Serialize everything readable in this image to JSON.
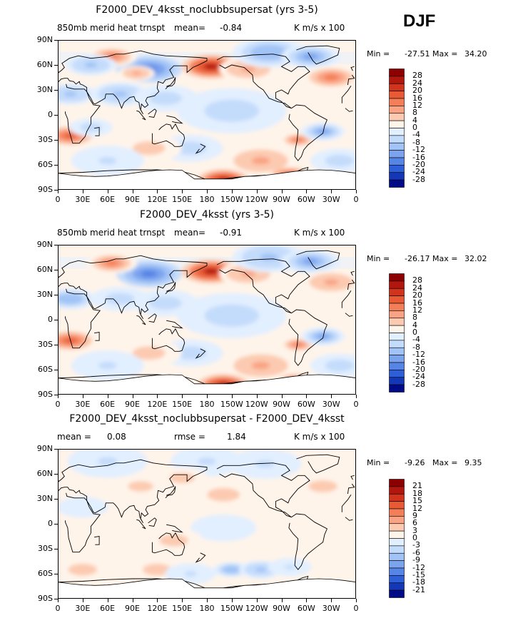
{
  "season": "DJF",
  "colors": {
    "ocean_neutral": "#ffffff",
    "coast": "#000000",
    "antarctica_fill": "#ffffff"
  },
  "panels": [
    {
      "title": "F2000_DEV_4ksst_noclubbsupersat (yrs 3-5)",
      "left_label": "850mb merid heat trnspt",
      "stat_label": "mean=",
      "stat_value": "-0.84",
      "units": "K m/s x 100",
      "min_label": "Min =",
      "min_value": "-27.51",
      "max_label": "Max =",
      "max_value": "34.20"
    },
    {
      "title": "F2000_DEV_4ksst (yrs 3-5)",
      "left_label": "850mb merid heat trnspt",
      "stat_label": "mean=",
      "stat_value": "-0.91",
      "units": "K m/s x 100",
      "min_label": "Min =",
      "min_value": "-26.17",
      "max_label": "Max =",
      "max_value": "32.02"
    },
    {
      "title": "F2000_DEV_4ksst_noclubbsupersat - F2000_DEV_4ksst",
      "left_label": "mean =",
      "left_value": "0.08",
      "stat_label": "rmse =",
      "stat_value": "1.84",
      "units": "K m/s x 100",
      "min_label": "Min =",
      "min_value": "-9.26",
      "max_label": "Max =",
      "max_value": "9.35"
    }
  ],
  "colorbars": [
    {
      "labels": [
        "28",
        "24",
        "20",
        "16",
        "12",
        "8",
        "4",
        "0",
        "-4",
        "-8",
        "-12",
        "-16",
        "-20",
        "-24",
        "-28"
      ],
      "colors": [
        "#8e0000",
        "#b2170d",
        "#d1341c",
        "#e75a34",
        "#f47e57",
        "#f9a384",
        "#fccab0",
        "#fff4ea",
        "#e2efff",
        "#c4dcfb",
        "#a1c3f6",
        "#7ca3ee",
        "#5585e5",
        "#2f5fd8",
        "#1437b8",
        "#000b87"
      ]
    },
    {
      "labels": [
        "28",
        "24",
        "20",
        "16",
        "12",
        "8",
        "4",
        "0",
        "-4",
        "-8",
        "-12",
        "-16",
        "-20",
        "-24",
        "-28"
      ],
      "colors": [
        "#8e0000",
        "#b2170d",
        "#d1341c",
        "#e75a34",
        "#f47e57",
        "#f9a384",
        "#fccab0",
        "#fff4ea",
        "#e2efff",
        "#c4dcfb",
        "#a1c3f6",
        "#7ca3ee",
        "#5585e5",
        "#2f5fd8",
        "#1437b8",
        "#000b87"
      ]
    },
    {
      "labels": [
        "21",
        "18",
        "15",
        "12",
        "9",
        "6",
        "3",
        "0",
        "-3",
        "-6",
        "-9",
        "-12",
        "-15",
        "-18",
        "-21"
      ],
      "colors": [
        "#8e0000",
        "#b2170d",
        "#d1341c",
        "#e75a34",
        "#f47e57",
        "#f9a384",
        "#fccab0",
        "#fff4ea",
        "#e2efff",
        "#c4dcfb",
        "#a1c3f6",
        "#7ca3ee",
        "#5585e5",
        "#2f5fd8",
        "#1437b8",
        "#000b87"
      ]
    }
  ],
  "axes": {
    "lat_ticks": [
      "90N",
      "60N",
      "30N",
      "0",
      "30S",
      "60S",
      "90S"
    ],
    "lon_ticks": [
      "0",
      "30E",
      "60E",
      "90E",
      "120E",
      "150E",
      "180",
      "150W",
      "120W",
      "90W",
      "60W",
      "30W",
      "0"
    ]
  },
  "chart_data": [
    {
      "type": "heatmap",
      "title": "F2000_DEV_4ksst_noclubbsupersat (yrs 3-5)",
      "variable": "850mb merid heat trnspt",
      "units": "K m/s x 100",
      "mean": -0.84,
      "min": -27.51,
      "max": 34.2,
      "levels": [
        -28,
        -24,
        -20,
        -16,
        -12,
        -8,
        -4,
        0,
        4,
        8,
        12,
        16,
        20,
        24,
        28
      ],
      "xlim": [
        0,
        360
      ],
      "ylim": [
        -90,
        90
      ],
      "blobs": [
        {
          "lon": 110,
          "lat": 55,
          "value": -20,
          "r": 18
        },
        {
          "lon": 65,
          "lat": 70,
          "value": 14,
          "r": 14
        },
        {
          "lon": 95,
          "lat": 50,
          "value": 10,
          "r": 10
        },
        {
          "lon": 185,
          "lat": 58,
          "value": 24,
          "r": 16
        },
        {
          "lon": 230,
          "lat": 55,
          "value": 10,
          "r": 16
        },
        {
          "lon": 255,
          "lat": 75,
          "value": -12,
          "r": 20
        },
        {
          "lon": 305,
          "lat": 70,
          "value": -16,
          "r": 16
        },
        {
          "lon": 330,
          "lat": 45,
          "value": 14,
          "r": 16
        },
        {
          "lon": 15,
          "lat": 25,
          "value": -10,
          "r": 14
        },
        {
          "lon": 40,
          "lat": 60,
          "value": -10,
          "r": 14
        },
        {
          "lon": 75,
          "lat": 25,
          "value": -10,
          "r": 16
        },
        {
          "lon": 130,
          "lat": 20,
          "value": -8,
          "r": 18
        },
        {
          "lon": 15,
          "lat": -25,
          "value": 16,
          "r": 12
        },
        {
          "lon": 40,
          "lat": -15,
          "value": -8,
          "r": 12
        },
        {
          "lon": 290,
          "lat": -30,
          "value": 14,
          "r": 10
        },
        {
          "lon": 320,
          "lat": -20,
          "value": -16,
          "r": 12
        },
        {
          "lon": 210,
          "lat": 5,
          "value": -6,
          "r": 30
        },
        {
          "lon": 160,
          "lat": -40,
          "value": -6,
          "r": 18
        },
        {
          "lon": 110,
          "lat": -40,
          "value": 6,
          "r": 18
        },
        {
          "lon": 245,
          "lat": -55,
          "value": 8,
          "r": 20
        },
        {
          "lon": 200,
          "lat": -78,
          "value": 24,
          "r": 14
        },
        {
          "lon": 280,
          "lat": -72,
          "value": 16,
          "r": 10
        },
        {
          "lon": 60,
          "lat": -55,
          "value": -5,
          "r": 20
        },
        {
          "lon": 340,
          "lat": -55,
          "value": -6,
          "r": 16
        }
      ]
    },
    {
      "type": "heatmap",
      "title": "F2000_DEV_4ksst (yrs 3-5)",
      "variable": "850mb merid heat trnspt",
      "units": "K m/s x 100",
      "mean": -0.91,
      "min": -26.17,
      "max": 32.02,
      "levels": [
        -28,
        -24,
        -20,
        -16,
        -12,
        -8,
        -4,
        0,
        4,
        8,
        12,
        16,
        20,
        24,
        28
      ],
      "xlim": [
        0,
        360
      ],
      "ylim": [
        -90,
        90
      ],
      "blobs": [
        {
          "lon": 110,
          "lat": 55,
          "value": -20,
          "r": 18
        },
        {
          "lon": 65,
          "lat": 68,
          "value": 12,
          "r": 14
        },
        {
          "lon": 185,
          "lat": 58,
          "value": 26,
          "r": 16
        },
        {
          "lon": 230,
          "lat": 55,
          "value": 8,
          "r": 16
        },
        {
          "lon": 255,
          "lat": 75,
          "value": -10,
          "r": 20
        },
        {
          "lon": 305,
          "lat": 70,
          "value": -14,
          "r": 16
        },
        {
          "lon": 330,
          "lat": 45,
          "value": 10,
          "r": 16
        },
        {
          "lon": 15,
          "lat": 25,
          "value": -12,
          "r": 14
        },
        {
          "lon": 75,
          "lat": 25,
          "value": -8,
          "r": 16
        },
        {
          "lon": 130,
          "lat": 20,
          "value": -8,
          "r": 18
        },
        {
          "lon": 15,
          "lat": -25,
          "value": 16,
          "r": 12
        },
        {
          "lon": 290,
          "lat": -30,
          "value": 14,
          "r": 10
        },
        {
          "lon": 320,
          "lat": -20,
          "value": -16,
          "r": 12
        },
        {
          "lon": 210,
          "lat": 5,
          "value": -6,
          "r": 30
        },
        {
          "lon": 160,
          "lat": -40,
          "value": -6,
          "r": 18
        },
        {
          "lon": 110,
          "lat": -40,
          "value": 6,
          "r": 18
        },
        {
          "lon": 245,
          "lat": -55,
          "value": 8,
          "r": 20
        },
        {
          "lon": 200,
          "lat": -78,
          "value": 24,
          "r": 14
        },
        {
          "lon": 285,
          "lat": -72,
          "value": 14,
          "r": 10
        },
        {
          "lon": 60,
          "lat": -55,
          "value": -5,
          "r": 20
        },
        {
          "lon": 340,
          "lat": -55,
          "value": -6,
          "r": 16
        }
      ]
    },
    {
      "type": "heatmap",
      "title": "F2000_DEV_4ksst_noclubbsupersat - F2000_DEV_4ksst",
      "units": "K m/s x 100",
      "mean": 0.08,
      "rmse": 1.84,
      "min": -9.26,
      "max": 9.35,
      "levels": [
        -21,
        -18,
        -15,
        -12,
        -9,
        -6,
        -3,
        0,
        3,
        6,
        9,
        12,
        15,
        18,
        21
      ],
      "xlim": [
        0,
        360
      ],
      "ylim": [
        -90,
        90
      ],
      "blobs": [
        {
          "lon": 60,
          "lat": 75,
          "value": -4,
          "r": 22
        },
        {
          "lon": 180,
          "lat": 75,
          "value": -4,
          "r": 20
        },
        {
          "lon": 250,
          "lat": 72,
          "value": -4,
          "r": 20
        },
        {
          "lon": 150,
          "lat": 55,
          "value": 4,
          "r": 14
        },
        {
          "lon": 200,
          "lat": 35,
          "value": 4,
          "r": 18
        },
        {
          "lon": 320,
          "lat": 45,
          "value": 4,
          "r": 16
        },
        {
          "lon": 100,
          "lat": 45,
          "value": 4,
          "r": 14
        },
        {
          "lon": 30,
          "lat": 20,
          "value": -3,
          "r": 14
        },
        {
          "lon": 200,
          "lat": -5,
          "value": -3,
          "r": 18
        },
        {
          "lon": 140,
          "lat": -20,
          "value": 4,
          "r": 16
        },
        {
          "lon": 210,
          "lat": -55,
          "value": -9,
          "r": 10
        },
        {
          "lon": 245,
          "lat": -55,
          "value": -7,
          "r": 12
        },
        {
          "lon": 280,
          "lat": -52,
          "value": -4,
          "r": 12
        },
        {
          "lon": 120,
          "lat": -55,
          "value": 4,
          "r": 16
        },
        {
          "lon": 160,
          "lat": -60,
          "value": -4,
          "r": 14
        },
        {
          "lon": 30,
          "lat": -55,
          "value": 4,
          "r": 16
        }
      ]
    }
  ]
}
